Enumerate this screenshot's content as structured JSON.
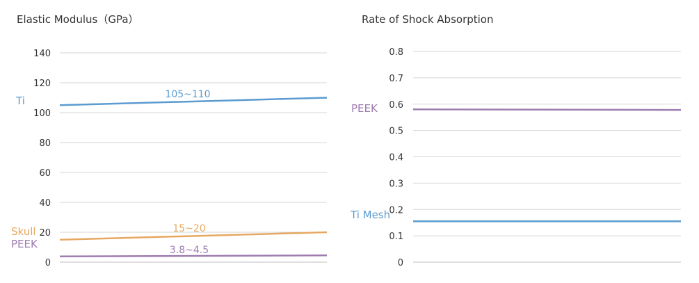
{
  "chart_data": [
    {
      "type": "line",
      "title": "Elastic Modulus（GPa）",
      "ylim": [
        0,
        140
      ],
      "yticks": [
        "0",
        "20",
        "40",
        "60",
        "80",
        "100",
        "120",
        "140"
      ],
      "series": [
        {
          "name": "Ti",
          "values": [
            105,
            110
          ],
          "range_label": "105~110",
          "color": "#5b9bd0"
        },
        {
          "name": "Skull",
          "values": [
            15,
            20
          ],
          "range_label": "15~20",
          "color": "#e6a861"
        },
        {
          "name": "PEEK",
          "values": [
            3.8,
            4.5
          ],
          "range_label": "3.8~4.5",
          "color": "#9e7cb0"
        }
      ]
    },
    {
      "type": "line",
      "title": "Rate of Shock Absorption",
      "ylim": [
        0,
        0.8
      ],
      "yticks": [
        "0",
        "0.1",
        "0.2",
        "0.3",
        "0.4",
        "0.5",
        "0.6",
        "0.7",
        "0.8"
      ],
      "series": [
        {
          "name": "PEEK",
          "values": [
            0.58,
            0.578
          ],
          "color": "#9e7cb0"
        },
        {
          "name": "Ti Mesh",
          "values": [
            0.155,
            0.155
          ],
          "color": "#5b9bd0"
        }
      ]
    }
  ]
}
